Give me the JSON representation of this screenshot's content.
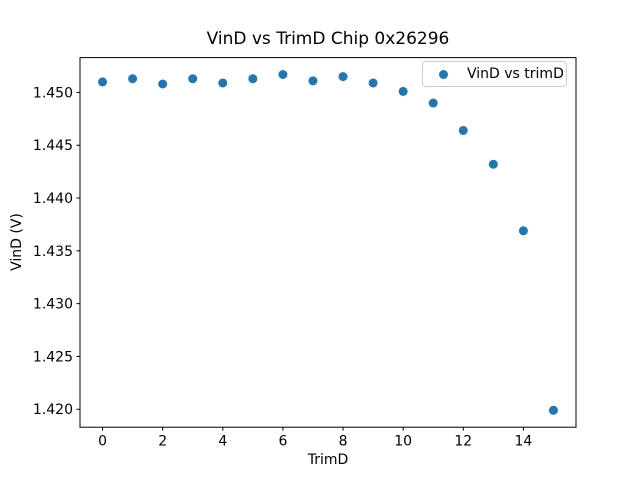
{
  "figure": {
    "background": "#ffffff",
    "text_color": "#000000",
    "spine_color": "#000000"
  },
  "chart_data": {
    "type": "scatter",
    "title": "VinD vs TrimD Chip 0x26296",
    "xlabel": "TrimD",
    "ylabel": "VinD (V)",
    "legend": [
      {
        "label": "VinD vs trimD",
        "marker_color": "#1f77b4"
      }
    ],
    "legend_position": "upper right",
    "grid": false,
    "xlim": [
      -0.75,
      15.75
    ],
    "ylim": [
      1.4183,
      1.4533
    ],
    "xticks": [
      0,
      2,
      4,
      6,
      8,
      10,
      12,
      14
    ],
    "yticks": [
      1.42,
      1.425,
      1.43,
      1.435,
      1.44,
      1.445,
      1.45
    ],
    "ytick_decimals": 3,
    "series": [
      {
        "name": "VinD vs trimD",
        "color": "#1f77b4",
        "marker": "circle",
        "x": [
          0,
          1,
          2,
          3,
          4,
          5,
          6,
          7,
          8,
          9,
          10,
          11,
          12,
          13,
          14,
          15
        ],
        "y": [
          1.451,
          1.4513,
          1.4508,
          1.4513,
          1.4509,
          1.4513,
          1.4517,
          1.4511,
          1.4515,
          1.4509,
          1.4501,
          1.449,
          1.4464,
          1.4432,
          1.4369,
          1.4199
        ]
      }
    ]
  }
}
